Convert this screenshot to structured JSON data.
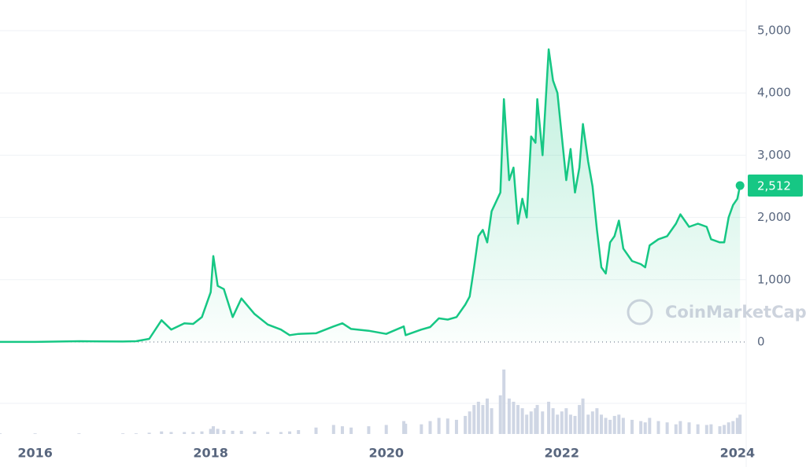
{
  "chart_data": {
    "type": "line",
    "x": [
      2015.6,
      2016.0,
      2016.5,
      2017.0,
      2017.15,
      2017.3,
      2017.44,
      2017.55,
      2017.7,
      2017.8,
      2017.9,
      2018.0,
      2018.03,
      2018.08,
      2018.15,
      2018.25,
      2018.35,
      2018.5,
      2018.65,
      2018.8,
      2018.9,
      2019.0,
      2019.2,
      2019.4,
      2019.5,
      2019.6,
      2019.8,
      2020.0,
      2020.2,
      2020.22,
      2020.4,
      2020.5,
      2020.6,
      2020.7,
      2020.8,
      2020.9,
      2020.95,
      2021.0,
      2021.05,
      2021.1,
      2021.15,
      2021.2,
      2021.3,
      2021.34,
      2021.4,
      2021.45,
      2021.5,
      2021.55,
      2021.6,
      2021.65,
      2021.7,
      2021.72,
      2021.78,
      2021.85,
      2021.9,
      2021.95,
      2022.0,
      2022.05,
      2022.1,
      2022.15,
      2022.2,
      2022.24,
      2022.3,
      2022.35,
      2022.4,
      2022.45,
      2022.5,
      2022.55,
      2022.6,
      2022.65,
      2022.7,
      2022.8,
      2022.9,
      2022.95,
      2023.0,
      2023.1,
      2023.2,
      2023.3,
      2023.35,
      2023.45,
      2023.55,
      2023.65,
      2023.7,
      2023.8,
      2023.85,
      2023.9,
      2023.95,
      2024.0,
      2024.03
    ],
    "series": [
      {
        "color": "#16c784",
        "values": [
          1,
          1,
          12,
          8,
          12,
          50,
          350,
          200,
          300,
          290,
          400,
          800,
          1380,
          900,
          850,
          400,
          700,
          450,
          280,
          200,
          110,
          130,
          140,
          250,
          300,
          210,
          180,
          130,
          250,
          110,
          200,
          240,
          380,
          360,
          400,
          600,
          730,
          1200,
          1700,
          1800,
          1600,
          2100,
          2400,
          3900,
          2600,
          2800,
          1900,
          2300,
          2000,
          3300,
          3200,
          3900,
          3000,
          4700,
          4200,
          4000,
          3300,
          2600,
          3100,
          2400,
          2800,
          3500,
          2900,
          2500,
          1800,
          1200,
          1100,
          1600,
          1700,
          1950,
          1500,
          1300,
          1250,
          1200,
          1550,
          1650,
          1700,
          1900,
          2050,
          1850,
          1900,
          1850,
          1650,
          1600,
          1600,
          2000,
          2200,
          2300,
          2512
        ]
      }
    ],
    "volume": {
      "color": "#cfd6e4",
      "ylim": [
        0,
        100
      ],
      "values": [
        1,
        1,
        1,
        1,
        1,
        2,
        4,
        3,
        3,
        3,
        4,
        8,
        12,
        8,
        6,
        5,
        5,
        4,
        3,
        3,
        4,
        6,
        10,
        14,
        12,
        10,
        12,
        14,
        20,
        16,
        15,
        20,
        25,
        24,
        22,
        28,
        35,
        45,
        50,
        45,
        55,
        40,
        60,
        100,
        55,
        50,
        45,
        40,
        30,
        35,
        40,
        45,
        35,
        50,
        40,
        30,
        35,
        40,
        30,
        28,
        45,
        55,
        30,
        35,
        40,
        30,
        25,
        22,
        28,
        30,
        25,
        22,
        20,
        18,
        25,
        20,
        18,
        15,
        20,
        18,
        15,
        14,
        15,
        12,
        14,
        18,
        20,
        25,
        30
      ]
    },
    "xlim": [
      2015.6,
      2024.1
    ],
    "xticks": [
      2016,
      2018,
      2020,
      2022,
      2024
    ],
    "ylim": [
      0,
      5000
    ],
    "yticks": [
      0,
      {
        "value": 1000,
        "label": "1,000"
      },
      {
        "value": 2000,
        "label": "2,000"
      },
      {
        "value": 3000,
        "label": "3,000"
      },
      {
        "value": 4000,
        "label": "4,000"
      },
      {
        "value": 5000,
        "label": "5,000"
      }
    ],
    "price_badge": {
      "value": 2512,
      "label": "2,512"
    },
    "watermark": "CoinMarketCap",
    "grid": true
  }
}
